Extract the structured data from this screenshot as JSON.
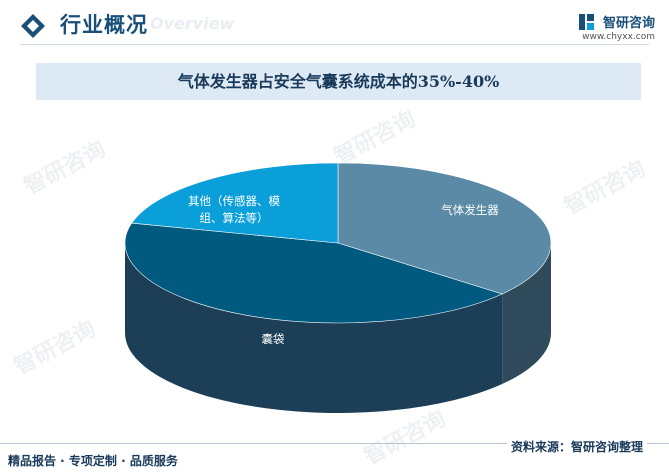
{
  "header": {
    "section_title": "行业概况",
    "section_subtitle": "Overview",
    "brand_name": "智研咨询",
    "brand_url": "www.chyxx.com"
  },
  "watermark_text": "智研咨询",
  "chart_data": {
    "type": "pie",
    "title": "气体发生器占安全气囊系统成本的35%-40%",
    "categories": [
      "气体发生器",
      "囊袋",
      "其他（传感器、模组、算法等）"
    ],
    "label_lines": [
      [
        "气体发生器"
      ],
      [
        "囊袋"
      ],
      [
        "其他（传感器、模",
        "组、算法等）"
      ]
    ],
    "values": [
      36,
      43,
      21
    ],
    "colors": [
      "#5b8aa6",
      "#005a80",
      "#0a9fd8"
    ],
    "side_colors": [
      "#2f4a5a",
      "#1c3f57",
      "#0a6e96"
    ],
    "legend": "none"
  },
  "footer": {
    "tags": "精品报告 · 专项定制 · 品质服务",
    "source": "资料来源：智研咨询整理"
  }
}
